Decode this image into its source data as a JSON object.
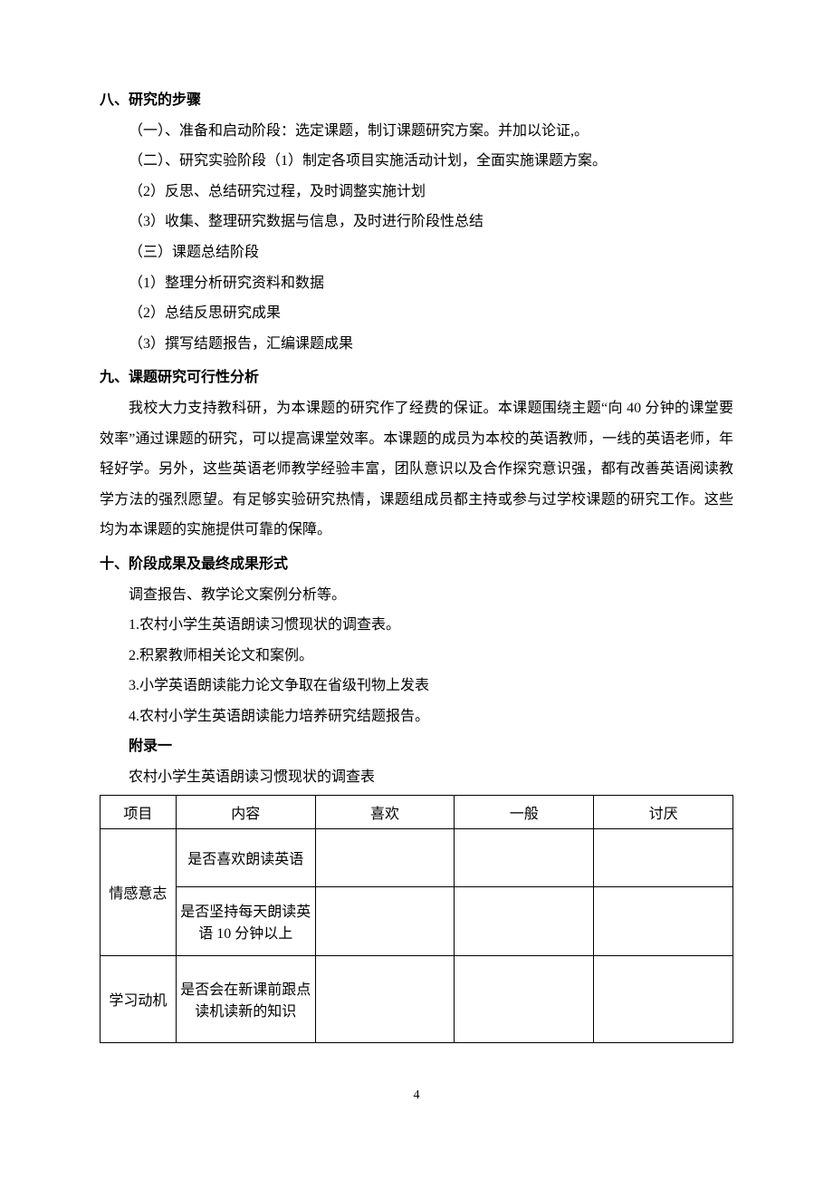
{
  "section8": {
    "heading": "八、研究的步骤",
    "lines": [
      "（一）、准备和启动阶段：选定课题，制订课题研究方案。并加以论证,。",
      "（二）、研究实验阶段（1）制定各项目实施活动计划，全面实施课题方案。",
      "（2）反思、总结研究过程，及时调整实施计划",
      "（3）收集、整理研究数据与信息，及时进行阶段性总结",
      "（三）课题总结阶段",
      "（1）整理分析研究资料和数据",
      "（2）总结反思研究成果",
      "（3）撰写结题报告，汇编课题成果"
    ]
  },
  "section9": {
    "heading": "九、课题研究可行性分析",
    "paragraph": "我校大力支持教科研，为本课题的研究作了经费的保证。本课题围绕主题“向 40 分钟的课堂要效率”通过课题的研究，可以提高课堂效率。本课题的成员为本校的英语教师，一线的英语老师，年轻好学。另外，这些英语老师教学经验丰富，团队意识以及合作探究意识强，都有改善英语阅读教学方法的强烈愿望。有足够实验研究热情，课题组成员都主持或参与过学校课题的研究工作。这些均为本课题的实施提供可靠的保障。"
  },
  "section10": {
    "heading": "十、阶段成果及最终成果形式",
    "lines": [
      "调查报告、教学论文案例分析等。",
      "1.农村小学生英语朗读习惯现状的调查表。",
      "2.积累教师相关论文和案例。",
      "3.小学英语朗读能力论文争取在省级刊物上发表",
      "4.农村小学生英语朗读能力培养研究结题报告。"
    ]
  },
  "appendix": {
    "label": "附录一",
    "title": "农村小学生英语朗读习惯现状的调查表"
  },
  "table": {
    "columns": [
      "项目",
      "内容",
      "喜欢",
      "一般",
      "讨厌"
    ],
    "groups": [
      {
        "category": "情感意志",
        "rows": [
          {
            "content": "是否喜欢朗读英语",
            "like": "",
            "average": "",
            "dislike": ""
          },
          {
            "content": "是否坚持每天朗读英语 10 分钟以上",
            "like": "",
            "average": "",
            "dislike": ""
          }
        ]
      },
      {
        "category": "学习动机",
        "rows": [
          {
            "content": "是否会在新课前跟点读机读新的知识",
            "like": "",
            "average": "",
            "dislike": ""
          }
        ]
      }
    ]
  },
  "pageNumber": "4",
  "styles": {
    "background": "#ffffff",
    "text_color": "#000000",
    "border_color": "#000000",
    "body_fontsize": 16,
    "line_height": 2.1
  }
}
